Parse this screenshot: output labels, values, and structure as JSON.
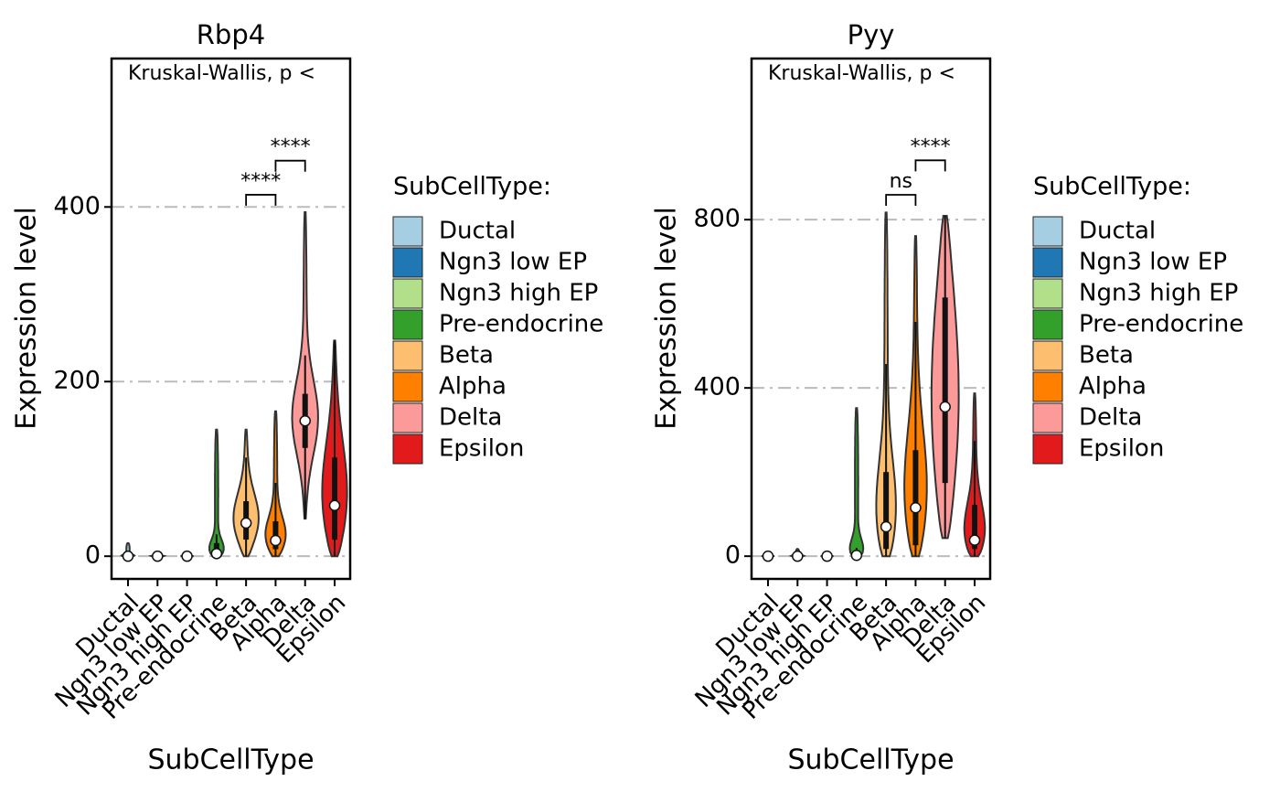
{
  "chart_data": [
    {
      "type": "violin",
      "title": "Rbp4",
      "subtitle": "Kruskal-Wallis, p <",
      "x_label": "SubCellType",
      "y_label": "Expression level",
      "legend_title": "SubCellType:",
      "categories": [
        "Ductal",
        "Ngn3 low EP",
        "Ngn3 high EP",
        "Pre-endocrine",
        "Beta",
        "Alpha",
        "Delta",
        "Epsilon"
      ],
      "colors": [
        "#A6CEE3",
        "#1F78B4",
        "#B2DF8A",
        "#33A02C",
        "#FDBF6F",
        "#FF7F00",
        "#FB9A99",
        "#E31A1C"
      ],
      "values": [
        0,
        0,
        0,
        3,
        38,
        18,
        155,
        58
      ],
      "q1": [
        0,
        0,
        0,
        0,
        19,
        8,
        124,
        19
      ],
      "q3": [
        0,
        0,
        0,
        15,
        63,
        40,
        186,
        113
      ],
      "whisker_high": [
        0,
        0,
        0,
        25,
        113,
        84,
        230,
        247
      ],
      "min": [
        0,
        0,
        0,
        0,
        0,
        0,
        43,
        0
      ],
      "max": [
        15,
        5,
        2,
        145,
        145,
        166,
        394,
        247
      ],
      "brackets": [
        {
          "from": 4,
          "to": 5,
          "label": "****",
          "y": 414
        },
        {
          "from": 5,
          "to": 6,
          "label": "****",
          "y": 453
        }
      ],
      "ylim": [
        -26,
        570
      ],
      "yticks": [
        0,
        200,
        400
      ],
      "grid": true
    },
    {
      "type": "violin",
      "title": "Pyy",
      "subtitle": "Kruskal-Wallis, p <",
      "x_label": "SubCellType",
      "y_label": "Expression level",
      "legend_title": "SubCellType:",
      "categories": [
        "Ductal",
        "Ngn3 low EP",
        "Ngn3 high EP",
        "Pre-endocrine",
        "Beta",
        "Alpha",
        "Delta",
        "Epsilon"
      ],
      "colors": [
        "#A6CEE3",
        "#1F78B4",
        "#B2DF8A",
        "#33A02C",
        "#FDBF6F",
        "#FF7F00",
        "#FB9A99",
        "#E31A1C"
      ],
      "values": [
        0,
        0,
        0,
        2,
        70,
        115,
        355,
        38
      ],
      "q1": [
        0,
        0,
        0,
        0,
        17,
        26,
        174,
        17
      ],
      "q3": [
        0,
        0,
        0,
        10,
        200,
        252,
        615,
        122
      ],
      "whisker_high": [
        0,
        0,
        0,
        20,
        457,
        557,
        809,
        274
      ],
      "min": [
        0,
        0,
        0,
        0,
        0,
        0,
        43,
        0
      ],
      "max": [
        5,
        17,
        3,
        352,
        817,
        761,
        809,
        387
      ],
      "brackets": [
        {
          "from": 4,
          "to": 5,
          "label": "ns",
          "y": 859
        },
        {
          "from": 5,
          "to": 6,
          "label": "****",
          "y": 941
        }
      ],
      "ylim": [
        -54,
        1183
      ],
      "yticks": [
        0,
        400,
        800
      ],
      "grid": true
    }
  ]
}
